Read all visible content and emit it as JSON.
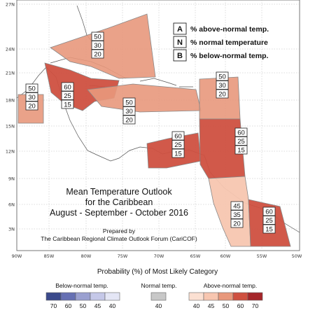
{
  "title": {
    "line1": "Mean Temperature Outlook",
    "line2": "for the Caribbean",
    "line3": "August - September - October 2016",
    "prepared_by": "Prepared by",
    "organization": "The Caribbean Regional Climate Outlook Forum (CariCOF)"
  },
  "key": [
    {
      "letter": "A",
      "text": "% above-normal temp."
    },
    {
      "letter": "N",
      "text": "% normal temperature"
    },
    {
      "letter": "B",
      "text": "% below-normal temp."
    }
  ],
  "lat_labels": [
    "27N",
    "24N",
    "21N",
    "18N",
    "15N",
    "12N",
    "9N",
    "6N",
    "3N"
  ],
  "lon_labels": [
    "90W",
    "85W",
    "80W",
    "75W",
    "70W",
    "65W",
    "60W",
    "55W",
    "50W"
  ],
  "regions": [
    {
      "id": "bahamas",
      "above": "50",
      "normal": "30",
      "below": "20",
      "color": "#e8987c"
    },
    {
      "id": "central-america-west",
      "above": "50",
      "normal": "30",
      "below": "20",
      "color": "#e8987c"
    },
    {
      "id": "cuba-jamaica",
      "above": "60",
      "normal": "25",
      "below": "15",
      "color": "#cf5040"
    },
    {
      "id": "hispaniola-pr",
      "above": "50",
      "normal": "30",
      "below": "20",
      "color": "#e8987c"
    },
    {
      "id": "northern-leewards",
      "above": "50",
      "normal": "30",
      "below": "20",
      "color": "#e8987c"
    },
    {
      "id": "southern-caribbean",
      "above": "60",
      "normal": "25",
      "below": "15",
      "color": "#cf5040"
    },
    {
      "id": "windwards-trinidad",
      "above": "60",
      "normal": "25",
      "below": "15",
      "color": "#cf5040"
    },
    {
      "id": "guyana",
      "above": "45",
      "normal": "35",
      "below": "20",
      "color": "#f7c6b0"
    },
    {
      "id": "suriname-french-guiana",
      "above": "60",
      "normal": "25",
      "below": "15",
      "color": "#cf5040"
    }
  ],
  "scale": {
    "title": "Probability (%) of Most Likely Category",
    "below_label": "Below-normal temp.",
    "normal_label": "Normal temp.",
    "above_label": "Above-normal temp.",
    "below": [
      {
        "label": "70",
        "color": "#3b4a8c"
      },
      {
        "label": "60",
        "color": "#6670b3"
      },
      {
        "label": "50",
        "color": "#9aa0d0"
      },
      {
        "label": "45",
        "color": "#c5c8e8"
      },
      {
        "label": "40",
        "color": "#e4e6f5"
      }
    ],
    "normal": [
      {
        "label": "40",
        "color": "#c8c8c8"
      }
    ],
    "above": [
      {
        "label": "40",
        "color": "#fbe0d2"
      },
      {
        "label": "45",
        "color": "#f7c6b0"
      },
      {
        "label": "50",
        "color": "#e8987c"
      },
      {
        "label": "60",
        "color": "#cf5040"
      },
      {
        "label": "70",
        "color": "#a5262a"
      }
    ]
  }
}
